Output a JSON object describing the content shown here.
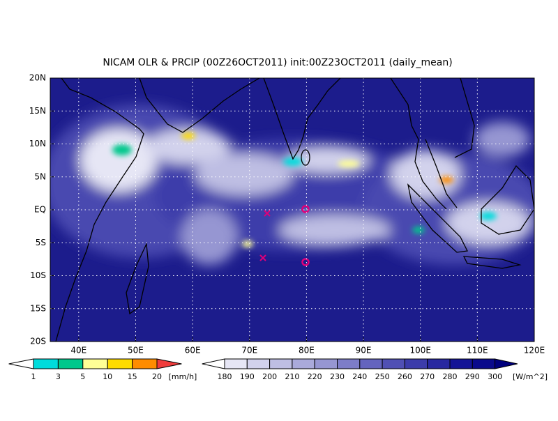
{
  "map": {
    "title": "NICAM OLR & PRCIP (00Z26OCT2011) init:00Z23OCT2011 (daily_mean)",
    "lat_labels": [
      "20N",
      "15N",
      "10N",
      "5N",
      "EQ",
      "5S",
      "10S",
      "15S",
      "20S"
    ],
    "lon_labels": [
      "40E",
      "50E",
      "60E",
      "70E",
      "80E",
      "90E",
      "100E",
      "110E",
      "120E"
    ],
    "precip_colorbar": {
      "labels": [
        "1",
        "3",
        "5",
        "10",
        "15",
        "20"
      ],
      "unit": "[mm/h]",
      "colors": [
        "#ffffff",
        "#00dcdc",
        "#00c88c",
        "#ffff96",
        "#ffdc00",
        "#ff8c00",
        "#f03c3c"
      ]
    },
    "olr_colorbar": {
      "labels": [
        "180",
        "190",
        "200",
        "210",
        "220",
        "230",
        "240",
        "250",
        "260",
        "270",
        "280",
        "290",
        "300"
      ],
      "unit": "[W/m^2]",
      "colors": [
        "#ffffff",
        "#e6e6f5",
        "#d2d2ec",
        "#bebee3",
        "#aaaadb",
        "#9696d2",
        "#7d7dc8",
        "#6464be",
        "#5050b4",
        "#3c3caa",
        "#2828a0",
        "#141496",
        "#0a0a8c",
        "#00007d"
      ]
    }
  }
}
